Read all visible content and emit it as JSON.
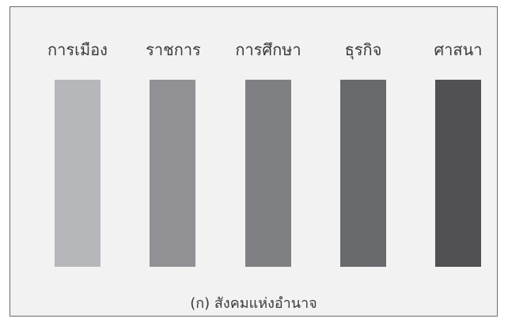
{
  "pillars": [
    {
      "label": "การเมือง",
      "color": "#b6b7bb"
    },
    {
      "label": "ราชการ",
      "color": "#919195"
    },
    {
      "label": "การศึกษา",
      "color": "#7f8084"
    },
    {
      "label": "ธุรกิจ",
      "color": "#68696d"
    },
    {
      "label": "ศาสนา",
      "color": "#515154"
    }
  ],
  "caption": "(ก) สังคมแห่งอำนาจ"
}
